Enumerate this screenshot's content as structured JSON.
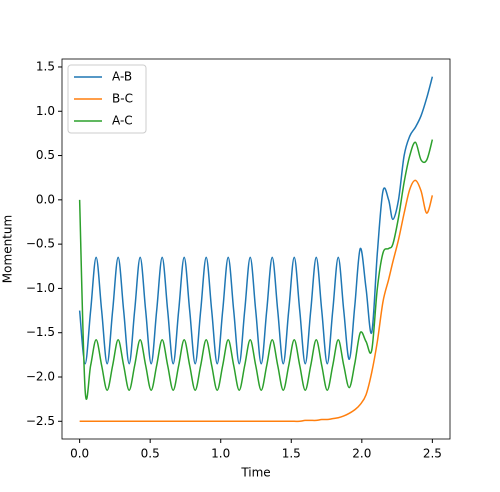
{
  "chart_data": {
    "type": "line",
    "x_label": "Time",
    "y_label": "Momentum",
    "x": [
      0,
      0.039,
      0.078,
      0.117,
      0.156,
      0.195,
      0.234,
      0.273,
      0.312,
      0.351,
      0.39,
      0.429,
      0.468,
      0.507,
      0.546,
      0.585,
      0.624,
      0.663,
      0.702,
      0.741,
      0.78,
      0.819,
      0.858,
      0.897,
      0.936,
      0.975,
      1.014,
      1.053,
      1.092,
      1.131,
      1.17,
      1.209,
      1.248,
      1.287,
      1.326,
      1.365,
      1.404,
      1.443,
      1.482,
      1.521,
      1.56,
      1.599,
      1.638,
      1.677,
      1.716,
      1.755,
      1.794,
      1.833,
      1.872,
      1.911,
      1.95,
      1.989,
      2.03,
      2.07,
      2.11,
      2.15,
      2.19,
      2.22,
      2.26,
      2.3,
      2.34,
      2.38,
      2.42,
      2.46,
      2.5
    ],
    "series": [
      {
        "name": "A-B",
        "color": "#1f77b4",
        "values": [
          -1.25,
          -1.85,
          -1.25,
          -0.65,
          -1.25,
          -1.85,
          -1.25,
          -0.65,
          -1.25,
          -1.85,
          -1.25,
          -0.65,
          -1.25,
          -1.85,
          -1.25,
          -0.65,
          -1.25,
          -1.85,
          -1.25,
          -0.65,
          -1.25,
          -1.85,
          -1.25,
          -0.65,
          -1.25,
          -1.85,
          -1.25,
          -0.65,
          -1.25,
          -1.85,
          -1.25,
          -0.65,
          -1.25,
          -1.85,
          -1.25,
          -0.65,
          -1.25,
          -1.85,
          -1.25,
          -0.65,
          -1.25,
          -1.85,
          -1.25,
          -0.65,
          -1.25,
          -1.85,
          -1.25,
          -0.65,
          -1.25,
          -1.8,
          -1.2,
          -0.55,
          -1.0,
          -1.5,
          -0.6,
          0.1,
          0.0,
          -0.22,
          0.0,
          0.5,
          0.72,
          0.82,
          0.95,
          1.15,
          1.39
        ]
      },
      {
        "name": "B-C",
        "color": "#ff7f0e",
        "values": [
          -2.5,
          -2.5,
          -2.5,
          -2.5,
          -2.5,
          -2.5,
          -2.5,
          -2.5,
          -2.5,
          -2.5,
          -2.5,
          -2.5,
          -2.5,
          -2.5,
          -2.5,
          -2.5,
          -2.5,
          -2.5,
          -2.5,
          -2.5,
          -2.5,
          -2.5,
          -2.5,
          -2.5,
          -2.5,
          -2.5,
          -2.5,
          -2.5,
          -2.5,
          -2.5,
          -2.5,
          -2.5,
          -2.5,
          -2.5,
          -2.5,
          -2.5,
          -2.5,
          -2.5,
          -2.5,
          -2.5,
          -2.5,
          -2.49,
          -2.49,
          -2.49,
          -2.48,
          -2.48,
          -2.47,
          -2.46,
          -2.44,
          -2.41,
          -2.37,
          -2.31,
          -2.2,
          -1.95,
          -1.6,
          -1.15,
          -0.9,
          -0.7,
          -0.45,
          -0.15,
          0.12,
          0.22,
          0.1,
          -0.15,
          0.05
        ]
      },
      {
        "name": "A-C",
        "color": "#2ca02c",
        "values": [
          0.0,
          -2.15,
          -1.87,
          -1.58,
          -1.87,
          -2.15,
          -1.87,
          -1.58,
          -1.87,
          -2.15,
          -1.87,
          -1.58,
          -1.87,
          -2.15,
          -1.87,
          -1.58,
          -1.87,
          -2.15,
          -1.87,
          -1.58,
          -1.87,
          -2.15,
          -1.87,
          -1.58,
          -1.87,
          -2.15,
          -1.87,
          -1.58,
          -1.87,
          -2.15,
          -1.87,
          -1.58,
          -1.87,
          -2.15,
          -1.87,
          -1.58,
          -1.87,
          -2.15,
          -1.87,
          -1.58,
          -1.87,
          -2.15,
          -1.87,
          -1.58,
          -1.87,
          -2.15,
          -1.87,
          -1.58,
          -1.87,
          -2.12,
          -1.85,
          -1.5,
          -1.6,
          -1.7,
          -1.0,
          -0.6,
          -0.55,
          -0.5,
          -0.2,
          0.2,
          0.5,
          0.65,
          0.45,
          0.45,
          0.68
        ]
      }
    ],
    "xlim": [
      -0.125,
      2.625
    ],
    "ylim": [
      -2.7,
      1.59
    ],
    "xticks": [
      {
        "value": 0,
        "label": "0.0"
      },
      {
        "value": 0.5,
        "label": "0.5"
      },
      {
        "value": 1,
        "label": "1.0"
      },
      {
        "value": 1.5,
        "label": "1.5"
      },
      {
        "value": 2,
        "label": "2.0"
      },
      {
        "value": 2.5,
        "label": "2.5"
      }
    ],
    "yticks": [
      {
        "value": -2.5,
        "label": "−2.5"
      },
      {
        "value": -2,
        "label": "−2.0"
      },
      {
        "value": -1.5,
        "label": "−1.5"
      },
      {
        "value": -1,
        "label": "−1.0"
      },
      {
        "value": -0.5,
        "label": "−0.5"
      },
      {
        "value": 0,
        "label": "0.0"
      },
      {
        "value": 0.5,
        "label": "0.5"
      },
      {
        "value": 1,
        "label": "1.0"
      },
      {
        "value": 1.5,
        "label": "1.5"
      }
    ],
    "legend": "upper left"
  }
}
